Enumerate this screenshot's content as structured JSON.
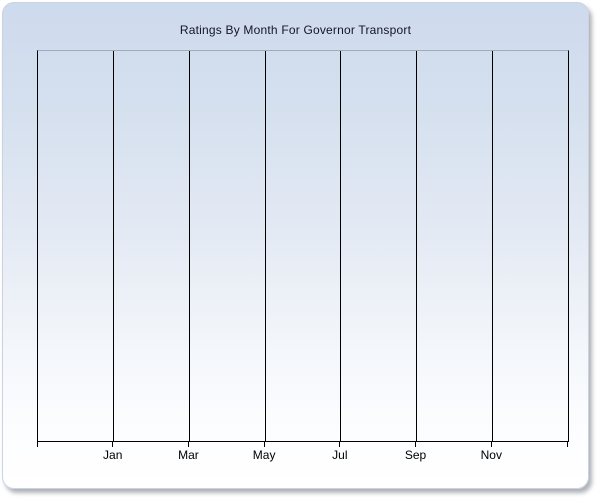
{
  "chart_data": {
    "type": "line",
    "title": "Ratings By Month For Governor Transport",
    "categories": [
      "Jan",
      "Mar",
      "May",
      "Jul",
      "Sep",
      "Nov"
    ],
    "series": [],
    "xlabel": "",
    "ylabel": "",
    "x_intervals": 7,
    "grid": "vertical-only",
    "legend": "none",
    "plot_empty": true
  },
  "colors": {
    "card_background_top": "#cedaed",
    "card_background_bottom": "#ffffff",
    "card_border": "#c9d3e2",
    "plot_top_border": "#a3abb8",
    "gridline": "#000000",
    "axis": "#000000",
    "title_text": "#14142a",
    "label_text": "#000000",
    "shadow": "#6e737d"
  }
}
